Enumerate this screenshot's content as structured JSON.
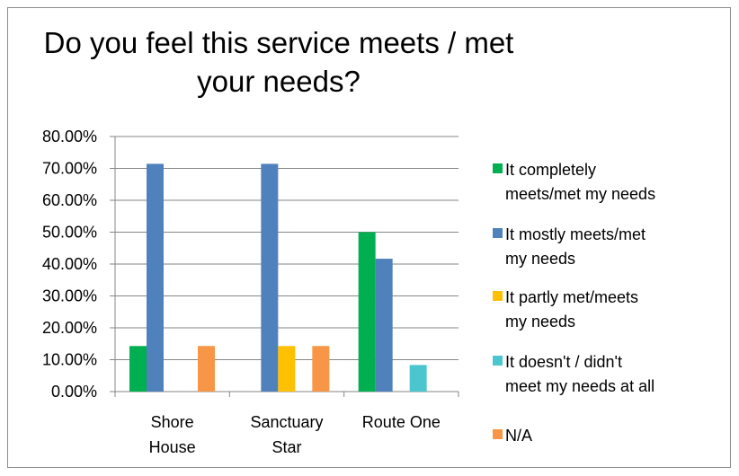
{
  "chart_data": {
    "type": "bar",
    "title_lines": [
      "Do you feel this service meets / met",
      "your needs?"
    ],
    "categories": [
      [
        "Shore",
        "House"
      ],
      [
        "Sanctuary",
        "Star"
      ],
      [
        "Route One"
      ]
    ],
    "ylim": [
      0,
      80
    ],
    "yticks": [
      "0.00%",
      "10.00%",
      "20.00%",
      "30.00%",
      "40.00%",
      "50.00%",
      "60.00%",
      "70.00%",
      "80.00%"
    ],
    "grid": true,
    "legend_position": "right",
    "series": [
      {
        "name_lines": [
          "It completely",
          "meets/met my needs"
        ],
        "color": "#00B050",
        "values": [
          14.29,
          0,
          50.0
        ]
      },
      {
        "name_lines": [
          "It mostly meets/met",
          "my needs"
        ],
        "color": "#4F81BD",
        "values": [
          71.43,
          71.43,
          41.67
        ]
      },
      {
        "name_lines": [
          "It partly met/meets",
          "my needs"
        ],
        "color": "#FFC000",
        "values": [
          0,
          14.29,
          0
        ]
      },
      {
        "name_lines": [
          "It doesn't / didn't",
          "meet my needs at all"
        ],
        "color": "#4BC6CF",
        "values": [
          0,
          0,
          8.33
        ]
      },
      {
        "name_lines": [
          "N/A"
        ],
        "color": "#F79646",
        "values": [
          14.29,
          14.29,
          0
        ]
      }
    ]
  }
}
